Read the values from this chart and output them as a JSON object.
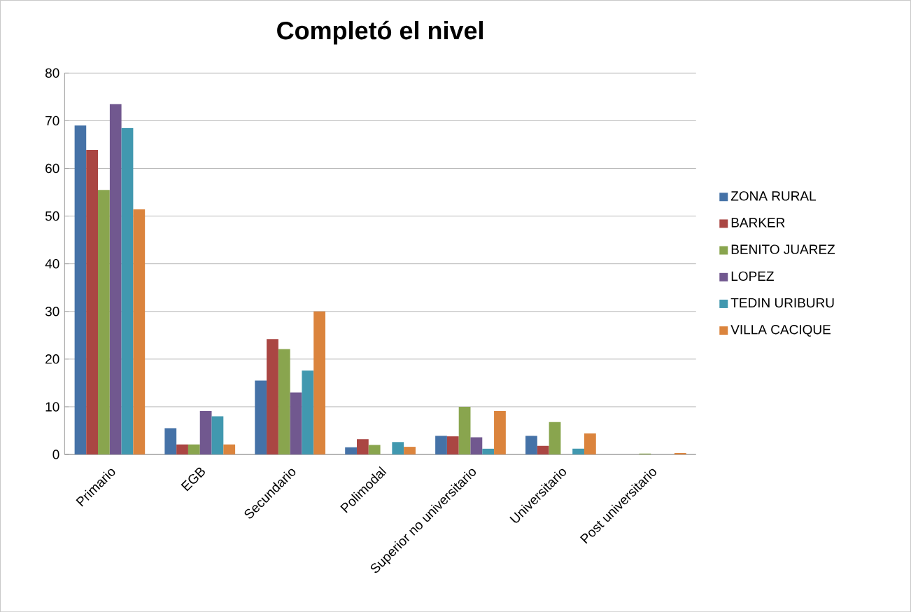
{
  "chart_data": {
    "type": "bar",
    "title": "Completó el nivel",
    "categories": [
      "Primario",
      "EGB",
      "Secundario",
      "Polimodal",
      "Superior no universitario",
      "Universitario",
      "Post universitario"
    ],
    "series": [
      {
        "name": "ZONA RURAL",
        "color": "#4572a7",
        "values": [
          69.0,
          5.5,
          15.5,
          1.5,
          3.9,
          3.9,
          0
        ]
      },
      {
        "name": "BARKER",
        "color": "#aa4643",
        "values": [
          63.9,
          2.1,
          24.2,
          3.2,
          3.8,
          1.8,
          0
        ]
      },
      {
        "name": "BENITO JUAREZ",
        "color": "#89a54e",
        "values": [
          55.5,
          2.1,
          22.1,
          2.0,
          10.0,
          6.8,
          0.2
        ]
      },
      {
        "name": "LOPEZ",
        "color": "#71588f",
        "values": [
          73.5,
          9.1,
          13.0,
          0,
          3.6,
          0,
          0
        ]
      },
      {
        "name": "TEDIN URIBURU",
        "color": "#4198af",
        "values": [
          68.5,
          8.0,
          17.6,
          2.6,
          1.2,
          1.2,
          0
        ]
      },
      {
        "name": "VILLA CACIQUE",
        "color": "#db843d",
        "values": [
          51.4,
          2.1,
          30.0,
          1.6,
          9.1,
          4.4,
          0.3
        ]
      }
    ],
    "ylim": [
      0,
      80
    ],
    "yticks": [
      0,
      10,
      20,
      30,
      40,
      50,
      60,
      70,
      80
    ],
    "grid": "y",
    "legend": "right"
  }
}
